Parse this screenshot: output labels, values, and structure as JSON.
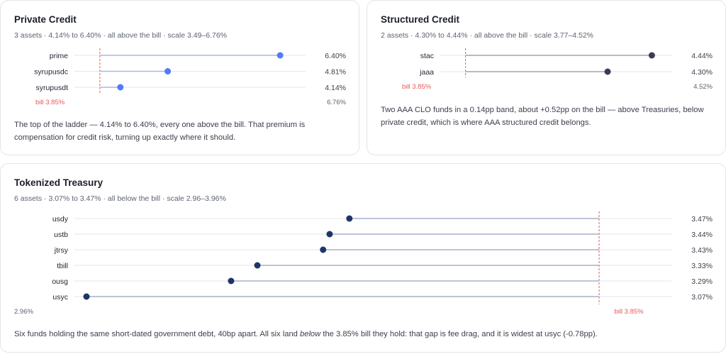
{
  "panels": [
    {
      "id": "private",
      "title": "Private Credit",
      "subtitle": "3 assets · 4.14% to 6.40% · all above the bill · scale 3.49–6.76%",
      "description": "The top of the ladder — 4.14% to 6.40%, every one above the bill. That premium is compensation for credit risk, turning up exactly where it should.",
      "dot_color": "#4f7cf7",
      "line_color": "#a9b8e2"
    },
    {
      "id": "structured",
      "title": "Structured Credit",
      "subtitle": "2 assets · 4.30% to 4.44% · all above the bill · scale 3.77–4.52%",
      "description": "Two AAA CLO funds in a 0.14pp band, about +0.52pp on the bill — above Treasuries, below private credit, which is where AAA structured credit belongs.",
      "dot_color": "#3d3a55",
      "line_color": "#a4a2b4"
    },
    {
      "id": "treasury",
      "title": "Tokenized Treasury",
      "subtitle": "6 assets · 3.07% to 3.47% · all below the bill · scale 2.96–3.96%",
      "description_parts": {
        "before": "Six funds holding the same short-dated government debt, 40bp apart. All six land ",
        "emphasis": "below",
        "after": " the 3.85% bill they hold: that gap is fee drag, and it is widest at usyc (-0.78pp)."
      },
      "dot_color": "#1f3468",
      "line_color": "#a9b1c8"
    }
  ],
  "chart_data": [
    {
      "type": "scatter",
      "title": "Private Credit",
      "categories": [
        "prime",
        "syrupusdc",
        "syrupusdt"
      ],
      "values": [
        6.4,
        4.81,
        4.14
      ],
      "value_labels": [
        "6.40%",
        "4.81%",
        "4.14%"
      ],
      "xlim": [
        3.49,
        6.76
      ],
      "scale_min_label": "",
      "scale_max_label": "6.76%",
      "reference": {
        "value": 3.85,
        "label": "bill 3.85%",
        "color": "#e8575a"
      }
    },
    {
      "type": "scatter",
      "title": "Structured Credit",
      "categories": [
        "stac",
        "jaaa"
      ],
      "values": [
        4.44,
        4.3
      ],
      "value_labels": [
        "4.44%",
        "4.30%"
      ],
      "xlim": [
        3.77,
        4.52
      ],
      "scale_min_label": "",
      "scale_max_label": "4.52%",
      "reference": {
        "value": 3.85,
        "label": "bill 3.85%",
        "color": "#e8575a"
      }
    },
    {
      "type": "scatter",
      "title": "Tokenized Treasury",
      "categories": [
        "usdy",
        "ustb",
        "jtrsy",
        "tbill",
        "ousg",
        "usyc"
      ],
      "values": [
        3.47,
        3.44,
        3.43,
        3.33,
        3.29,
        3.07
      ],
      "value_labels": [
        "3.47%",
        "3.44%",
        "3.43%",
        "3.33%",
        "3.29%",
        "3.07%"
      ],
      "xlim": [
        2.96,
        3.96
      ],
      "scale_min_label": "2.96%",
      "scale_max_label": "",
      "reference": {
        "value": 3.85,
        "label": "bill 3.85%",
        "color": "#e8575a"
      }
    }
  ]
}
